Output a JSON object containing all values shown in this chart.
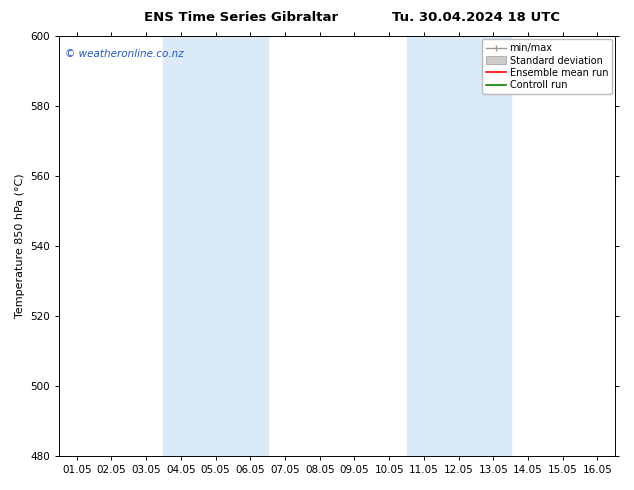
{
  "title": "ENS Time Series Gibraltar",
  "subtitle": "Tu. 30.04.2024 18 UTC",
  "ylabel": "Temperature 850 hPa (°C)",
  "ylim": [
    480,
    600
  ],
  "yticks": [
    480,
    500,
    520,
    540,
    560,
    580,
    600
  ],
  "xtick_labels": [
    "01.05",
    "02.05",
    "03.05",
    "04.05",
    "05.05",
    "06.05",
    "07.05",
    "08.05",
    "09.05",
    "10.05",
    "11.05",
    "12.05",
    "13.05",
    "14.05",
    "15.05",
    "16.05"
  ],
  "shaded_regions": [
    {
      "xstart": 3,
      "xend": 5
    },
    {
      "xstart": 10,
      "xend": 12
    }
  ],
  "shaded_color": "#daeaf7",
  "watermark_text": "© weatheronline.co.nz",
  "watermark_color": "#2255cc",
  "legend_entries": [
    {
      "label": "min/max",
      "color": "#999999",
      "type": "minmax"
    },
    {
      "label": "Standard deviation",
      "color": "#cccccc",
      "type": "stddev"
    },
    {
      "label": "Ensemble mean run",
      "color": "#ff0000",
      "type": "line"
    },
    {
      "label": "Controll run",
      "color": "#008800",
      "type": "line"
    }
  ],
  "bg_color": "#ffffff",
  "spine_color": "#000000",
  "title_fontsize": 9.5,
  "label_fontsize": 8,
  "tick_fontsize": 7.5,
  "legend_fontsize": 7
}
